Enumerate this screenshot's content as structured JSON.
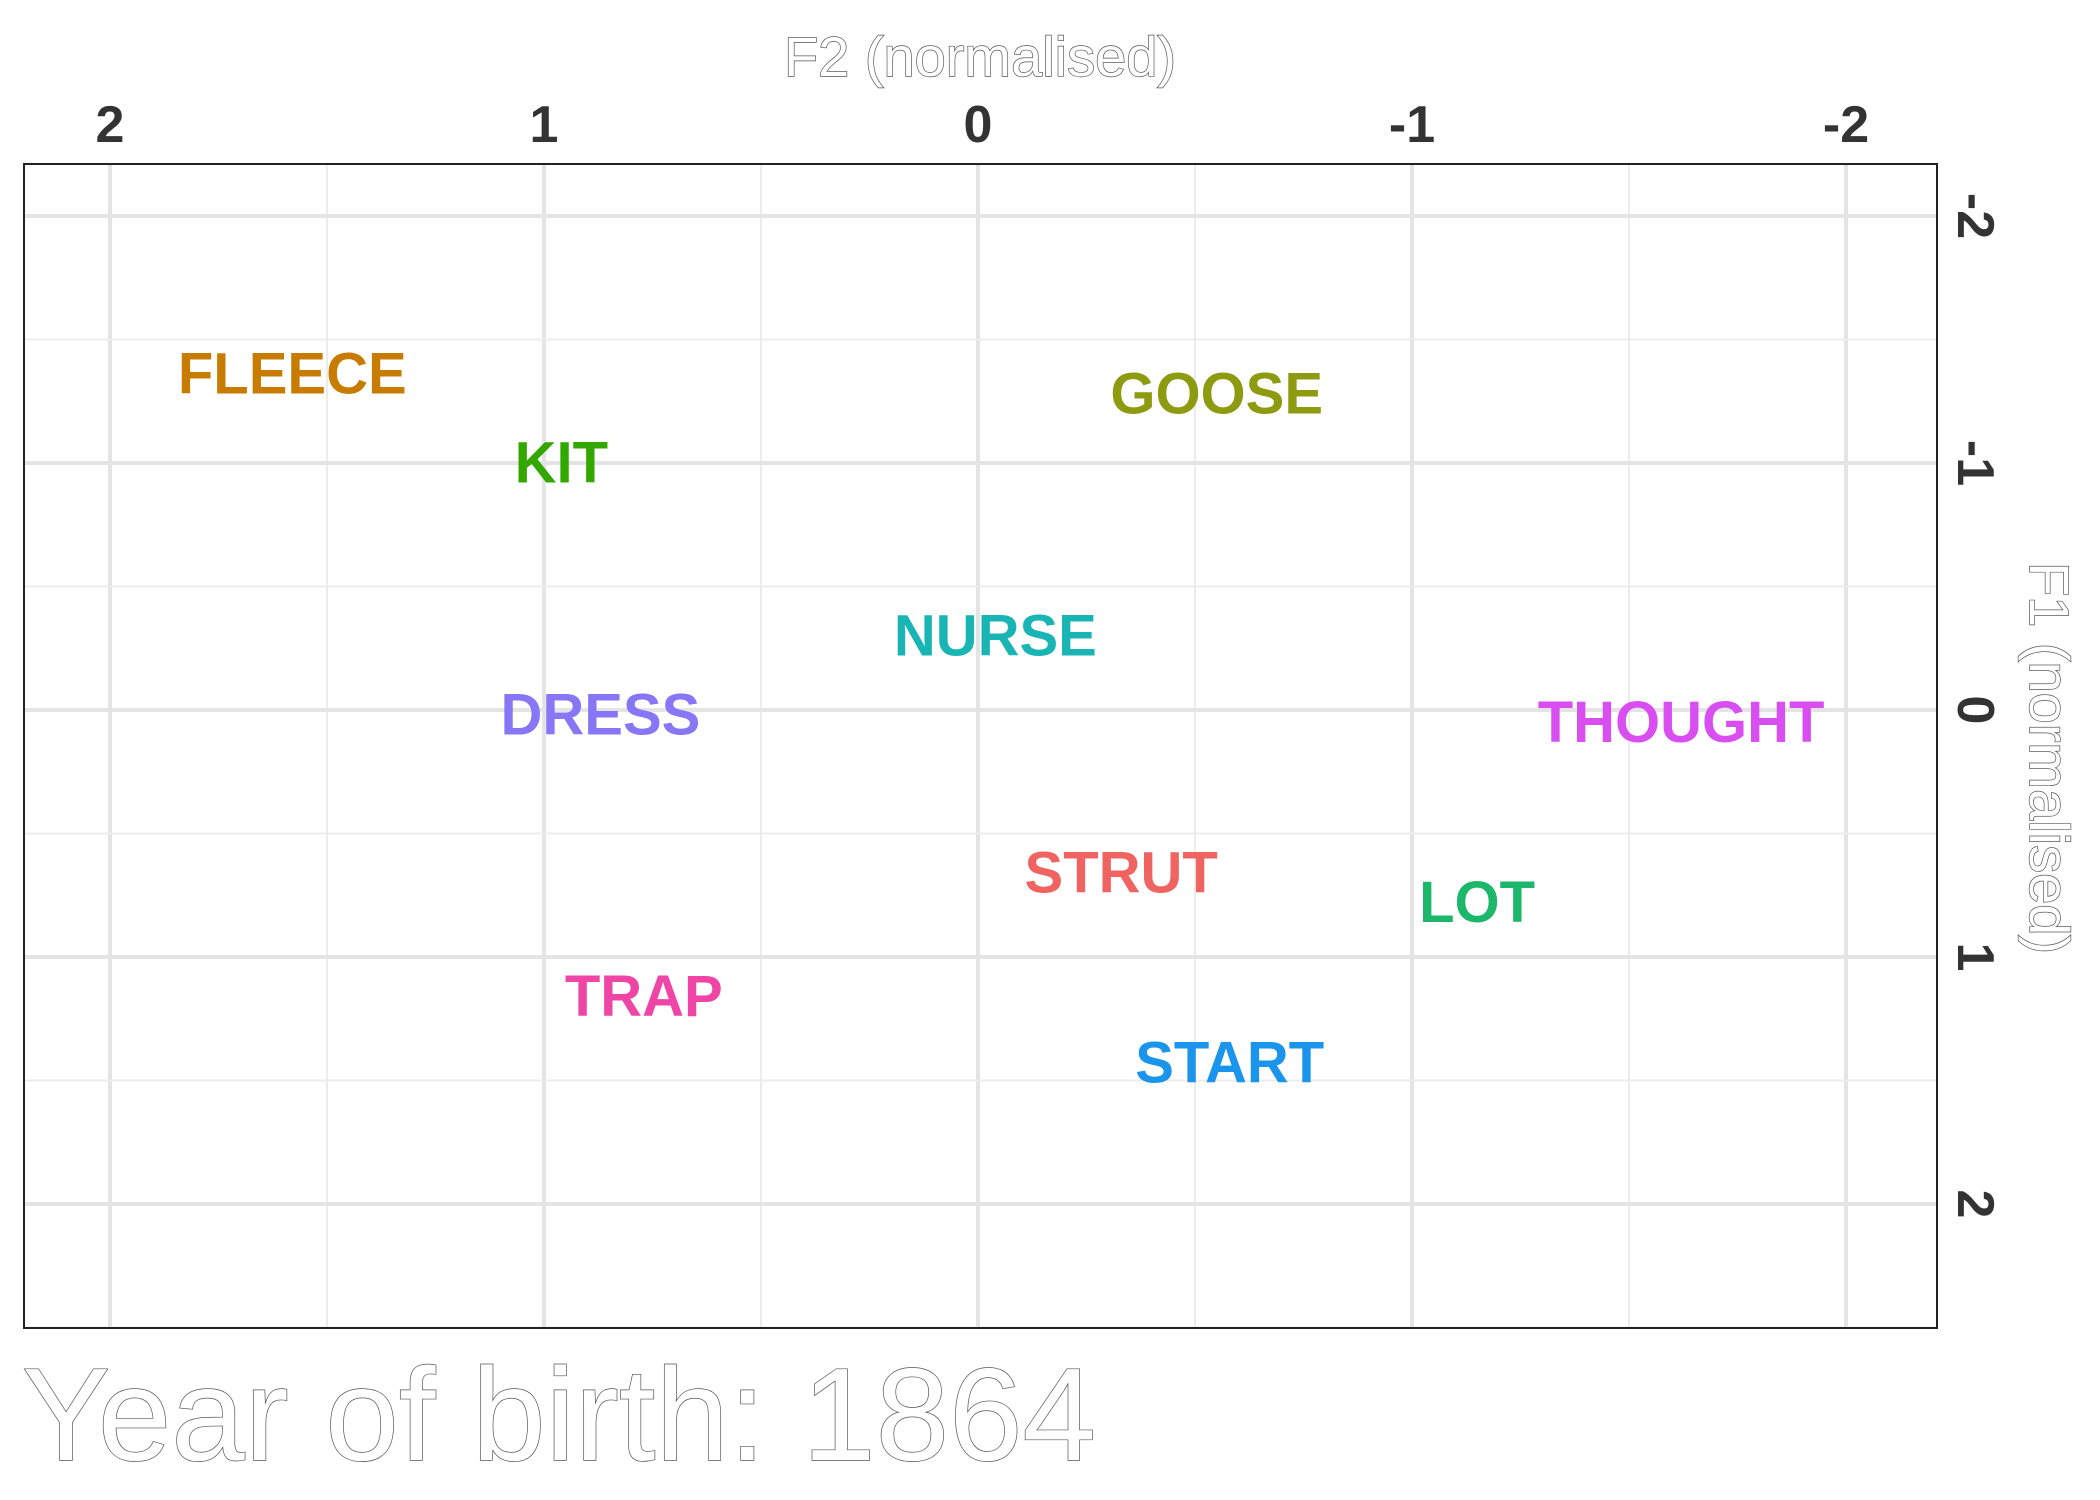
{
  "chart_data": {
    "type": "scatter",
    "subtitle": "Year of birth: 1864",
    "xlabel": "F2 (normalised)",
    "ylabel": "F1 (normalised)",
    "x_reversed": true,
    "y_reversed": true,
    "xlim": [
      2.2,
      -2.2
    ],
    "ylim": [
      -2.5,
      2.5
    ],
    "x_ticks": [
      2,
      1,
      0,
      -1,
      -2
    ],
    "y_ticks": [
      -2,
      -1,
      0,
      1,
      2
    ],
    "x_tick_labels": [
      "2",
      "1",
      "0",
      "-1",
      "-2"
    ],
    "y_tick_labels": [
      "-2",
      "-1",
      "0",
      "1",
      "2"
    ],
    "grid": true,
    "x_axis_position": "top",
    "y_axis_position": "right",
    "points": [
      {
        "label": "FLEECE",
        "x": 1.58,
        "y": -1.36,
        "color": "#C77C00"
      },
      {
        "label": "GOOSE",
        "x": -0.55,
        "y": -1.28,
        "color": "#8E9A0F"
      },
      {
        "label": "KIT",
        "x": 0.96,
        "y": -1.0,
        "color": "#32A700"
      },
      {
        "label": "NURSE",
        "x": -0.04,
        "y": -0.3,
        "color": "#19B5B5"
      },
      {
        "label": "DRESS",
        "x": 0.87,
        "y": 0.02,
        "color": "#8776F5"
      },
      {
        "label": "THOUGHT",
        "x": -1.62,
        "y": 0.05,
        "color": "#D94EF0"
      },
      {
        "label": "STRUT",
        "x": -0.33,
        "y": 0.66,
        "color": "#EF6461"
      },
      {
        "label": "LOT",
        "x": -1.15,
        "y": 0.78,
        "color": "#1DB76B"
      },
      {
        "label": "TRAP",
        "x": 0.77,
        "y": 1.16,
        "color": "#EE45A6"
      },
      {
        "label": "START",
        "x": -0.58,
        "y": 1.43,
        "color": "#1B95EC"
      }
    ]
  }
}
